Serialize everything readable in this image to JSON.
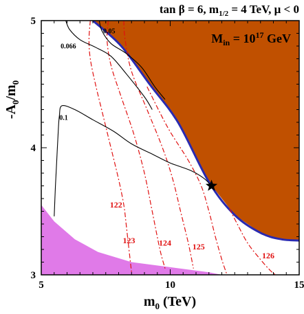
{
  "chart_data": {
    "type": "contour",
    "title": "tan β = 6, m",
    "title_sub": "1/2",
    "title_tail": " = 4 TeV, μ < 0",
    "annotation": {
      "main": "M",
      "sub": "in",
      "eq": " = 10",
      "sup": "17",
      "unit": " GeV"
    },
    "xlabel": {
      "main": "m",
      "sub": "0",
      "unit": " (TeV)"
    },
    "ylabel": {
      "main": "-A",
      "sub1": "0",
      "mid": "/m",
      "sub2": "0"
    },
    "xlim": [
      5,
      15
    ],
    "ylim": [
      3,
      5
    ],
    "xticks": [
      "5",
      "10",
      "15"
    ],
    "yticks": [
      "3",
      "4",
      "5"
    ],
    "colors": {
      "excluded_region": "#c05000",
      "excluded_boundary": "#2a2ab0",
      "lower_region": "#e07ae8",
      "higgs_contours": "#e01010",
      "relic_contours": "#000000"
    },
    "regions": {
      "excluded": [
        [
          7.0,
          5.0
        ],
        [
          8.1,
          4.8
        ],
        [
          9.2,
          4.5
        ],
        [
          10.3,
          4.2
        ],
        [
          11.5,
          3.73
        ],
        [
          12.5,
          3.47
        ],
        [
          13.5,
          3.33
        ],
        [
          14.3,
          3.28
        ],
        [
          15.0,
          3.27
        ],
        [
          15.0,
          5.0
        ]
      ],
      "lower": [
        [
          5.0,
          3.55
        ],
        [
          5.5,
          3.42
        ],
        [
          6.3,
          3.28
        ],
        [
          7.2,
          3.18
        ],
        [
          8.5,
          3.1
        ],
        [
          10.0,
          3.06
        ],
        [
          11.5,
          3.02
        ],
        [
          12.0,
          3.0
        ],
        [
          5.0,
          3.0
        ]
      ]
    },
    "star": {
      "x": 11.6,
      "y": 3.7
    },
    "higgs_contours": [
      {
        "label": "122",
        "label_at": [
          7.9,
          3.53
        ],
        "points": [
          [
            6.9,
            5.0
          ],
          [
            6.85,
            4.85
          ],
          [
            6.9,
            4.7
          ],
          [
            7.1,
            4.5
          ],
          [
            7.4,
            4.25
          ],
          [
            7.7,
            4.0
          ],
          [
            8.0,
            3.75
          ],
          [
            8.2,
            3.55
          ],
          [
            8.3,
            3.38
          ],
          [
            8.4,
            3.2
          ],
          [
            8.5,
            3.02
          ]
        ]
      },
      {
        "label": "123",
        "label_at": [
          8.4,
          3.25
        ],
        "points": [
          [
            7.6,
            5.0
          ],
          [
            7.55,
            4.85
          ],
          [
            7.7,
            4.65
          ],
          [
            8.1,
            4.4
          ],
          [
            8.6,
            4.1
          ],
          [
            9.0,
            3.8
          ],
          [
            9.3,
            3.5
          ],
          [
            9.6,
            3.2
          ],
          [
            9.8,
            3.05
          ]
        ]
      },
      {
        "label": "124",
        "label_at": [
          9.8,
          3.23
        ],
        "points": [
          [
            8.2,
            5.0
          ],
          [
            8.25,
            4.85
          ],
          [
            8.5,
            4.6
          ],
          [
            9.1,
            4.3
          ],
          [
            9.7,
            4.0
          ],
          [
            10.1,
            3.75
          ],
          [
            10.4,
            3.5
          ],
          [
            10.7,
            3.25
          ],
          [
            10.9,
            3.05
          ]
        ]
      },
      {
        "label": "125",
        "label_at": [
          11.1,
          3.2
        ],
        "points": [
          [
            9.1,
            4.48
          ],
          [
            9.9,
            4.16
          ],
          [
            10.7,
            3.9
          ],
          [
            11.2,
            3.7
          ],
          [
            11.5,
            3.5
          ],
          [
            11.75,
            3.3
          ],
          [
            12.0,
            3.12
          ],
          [
            12.2,
            3.0
          ]
        ]
      },
      {
        "label": "126",
        "label_at": [
          13.8,
          3.13
        ],
        "points": [
          [
            12.3,
            3.52
          ],
          [
            12.6,
            3.4
          ],
          [
            13.0,
            3.25
          ],
          [
            13.5,
            3.12
          ],
          [
            13.9,
            3.03
          ],
          [
            14.1,
            3.0
          ]
        ]
      }
    ],
    "relic_contours": [
      {
        "label": "0.05",
        "label_at": [
          7.4,
          4.9
        ],
        "points": [
          [
            7.25,
            5.0
          ],
          [
            7.35,
            4.92
          ],
          [
            7.7,
            4.82
          ],
          [
            8.3,
            4.74
          ],
          [
            8.9,
            4.63
          ],
          [
            9.4,
            4.48
          ],
          [
            9.8,
            4.38
          ]
        ]
      },
      {
        "label": "0.066",
        "label_at": [
          5.75,
          4.78
        ],
        "points": [
          [
            5.95,
            5.0
          ],
          [
            6.1,
            4.93
          ],
          [
            6.5,
            4.85
          ],
          [
            7.1,
            4.79
          ],
          [
            7.7,
            4.72
          ],
          [
            8.3,
            4.58
          ],
          [
            9.0,
            4.4
          ],
          [
            9.3,
            4.3
          ]
        ]
      },
      {
        "label": "0.1",
        "label_at": [
          5.7,
          4.22
        ],
        "points": [
          [
            5.5,
            3.46
          ],
          [
            5.55,
            3.7
          ],
          [
            5.6,
            3.9
          ],
          [
            5.65,
            4.1
          ],
          [
            5.7,
            4.25
          ],
          [
            5.8,
            4.33
          ],
          [
            6.3,
            4.3
          ],
          [
            7.0,
            4.22
          ],
          [
            7.8,
            4.13
          ],
          [
            8.5,
            4.03
          ],
          [
            9.3,
            3.95
          ],
          [
            10.0,
            3.88
          ],
          [
            10.8,
            3.82
          ],
          [
            11.3,
            3.76
          ],
          [
            11.6,
            3.7
          ]
        ]
      }
    ]
  }
}
